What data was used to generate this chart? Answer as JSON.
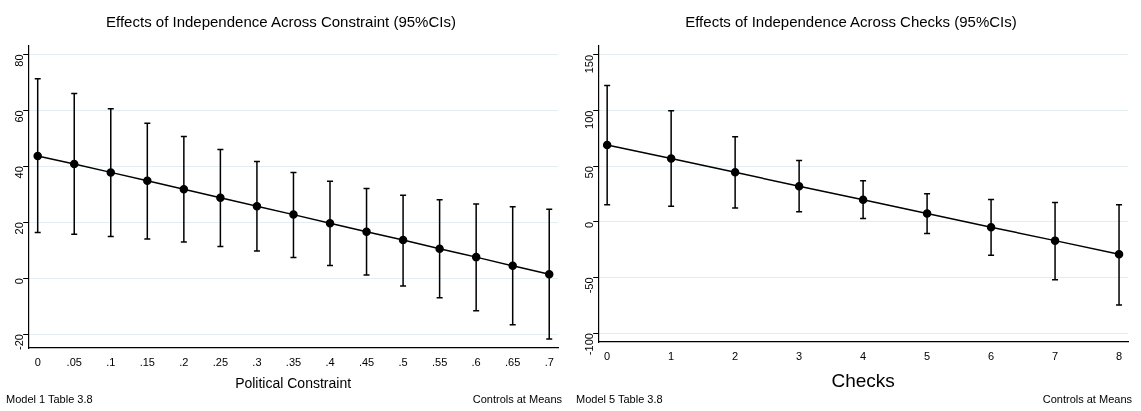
{
  "chart_data": [
    {
      "type": "line",
      "title": "Effects of Independence Across Constraint (95%CIs)",
      "xlabel": "Political Constraint",
      "annotations": [
        "Model 1 Table 3.8",
        "Controls at Means"
      ],
      "x": [
        0,
        0.05,
        0.1,
        0.15,
        0.2,
        0.25,
        0.3,
        0.35,
        0.4,
        0.45,
        0.5,
        0.55,
        0.6,
        0.65,
        0.7
      ],
      "series": [
        {
          "color": "#000000",
          "values": [
            43.7,
            40.8,
            37.8,
            34.8,
            31.8,
            28.7,
            25.7,
            22.7,
            19.6,
            16.6,
            13.6,
            10.5,
            7.5,
            4.4,
            1.4
          ],
          "errors": [
            [
              16.3,
              71.3
            ],
            [
              15.7,
              66.0
            ],
            [
              14.9,
              60.6
            ],
            [
              14.0,
              55.4
            ],
            [
              12.9,
              50.6
            ],
            [
              11.3,
              46.0
            ],
            [
              9.7,
              41.7
            ],
            [
              7.4,
              37.8
            ],
            [
              4.5,
              34.6
            ],
            [
              1.1,
              32.0
            ],
            [
              -2.8,
              29.6
            ],
            [
              -7.0,
              28.0
            ],
            [
              -11.7,
              26.5
            ],
            [
              -16.7,
              25.5
            ],
            [
              -21.8,
              24.6
            ]
          ]
        }
      ],
      "xlim": [
        -0.013,
        0.712
      ],
      "xticks": [
        0,
        {
          "value": 0.05,
          "label": ".05"
        },
        {
          "value": 0.1,
          "label": ".1"
        },
        {
          "value": 0.15,
          "label": ".15"
        },
        {
          "value": 0.2,
          "label": ".2"
        },
        {
          "value": 0.25,
          "label": ".25"
        },
        {
          "value": 0.3,
          "label": ".3"
        },
        {
          "value": 0.35,
          "label": ".35"
        },
        {
          "value": 0.4,
          "label": ".4"
        },
        {
          "value": 0.45,
          "label": ".45"
        },
        {
          "value": 0.5,
          "label": ".5"
        },
        {
          "value": 0.55,
          "label": ".55"
        },
        {
          "value": 0.6,
          "label": ".6"
        },
        {
          "value": 0.65,
          "label": ".65"
        },
        {
          "value": 0.7,
          "label": ".7"
        }
      ],
      "ylim": [
        -25,
        83
      ],
      "yticks": [
        -20,
        0,
        20,
        40,
        60,
        80
      ],
      "grid": "y",
      "marker": "circle",
      "line_style": "solid",
      "legend": false
    },
    {
      "type": "line",
      "title": "Effects of Independence Across Checks (95%CIs)",
      "xlabel": "Checks",
      "annotations": [
        "Model 5 Table 3.8",
        "Controls at Means"
      ],
      "x": [
        0,
        1,
        2,
        3,
        4,
        5,
        6,
        7,
        8
      ],
      "series": [
        {
          "color": "#000000",
          "values": [
            69.1,
            56.9,
            44.5,
            32.0,
            19.8,
            7.4,
            -4.8,
            -16.9,
            -29.1
          ],
          "errors": [
            [
              15.4,
              122.5
            ],
            [
              14.1,
              99.8
            ],
            [
              12.5,
              76.4
            ],
            [
              9.0,
              55.0
            ],
            [
              2.9,
              36.8
            ],
            [
              -10.6,
              25.3
            ],
            [
              -30.1,
              20.1
            ],
            [
              -52.1,
              17.3
            ],
            [
              -74.8,
              15.4
            ]
          ]
        }
      ],
      "xlim": [
        -0.14,
        8.14
      ],
      "xticks": [
        0,
        1,
        2,
        3,
        4,
        5,
        6,
        7,
        8
      ],
      "ylim": [
        -108,
        158
      ],
      "yticks": [
        -100,
        -50,
        0,
        50,
        100,
        150
      ],
      "grid": "y",
      "marker": "circle",
      "line_style": "solid",
      "legend": false
    }
  ]
}
